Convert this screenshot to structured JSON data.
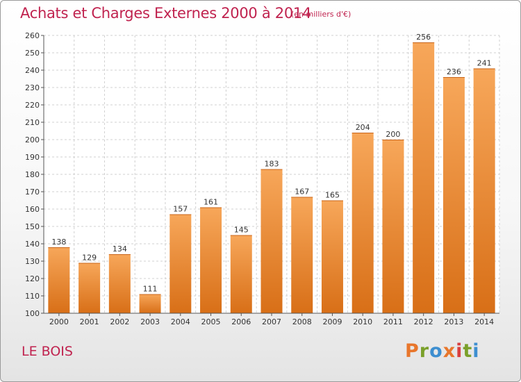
{
  "header": {
    "title": "Achats et Charges Externes 2000 à 2014",
    "subtitle": "(en milliers d'€)"
  },
  "footer": {
    "commune": "LE BOIS",
    "logo": "Proxiti"
  },
  "colors": {
    "title": "#c0234f",
    "bar_top": "#f7a75a",
    "bar_bottom": "#d86f17",
    "logo_letters": [
      "#e8762b",
      "#7aa02a",
      "#3d8ed0",
      "#e8762b",
      "#d93f3f",
      "#7aa02a",
      "#3d8ed0"
    ]
  },
  "chart_data": {
    "type": "bar",
    "categories": [
      "2000",
      "2001",
      "2002",
      "2003",
      "2004",
      "2005",
      "2006",
      "2007",
      "2008",
      "2009",
      "2010",
      "2011",
      "2012",
      "2013",
      "2014"
    ],
    "values": [
      138,
      129,
      134,
      111,
      157,
      161,
      145,
      183,
      167,
      165,
      204,
      200,
      256,
      236,
      241
    ],
    "ylim": [
      100,
      260
    ],
    "yticks": [
      100,
      110,
      120,
      130,
      140,
      150,
      160,
      170,
      180,
      190,
      200,
      210,
      220,
      230,
      240,
      250,
      260
    ],
    "grid": true,
    "data_labels": true
  }
}
